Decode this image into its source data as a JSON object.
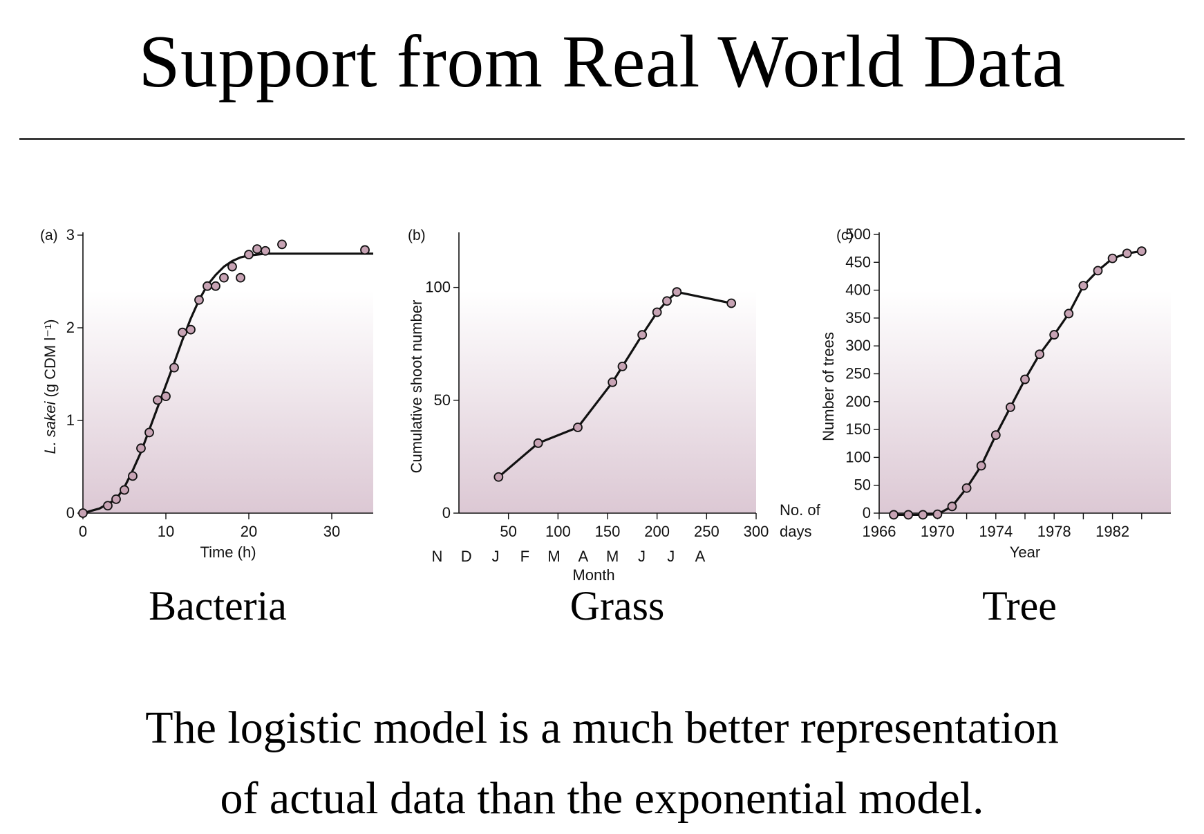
{
  "page": {
    "title": "Support from Real World Data",
    "summary_lines": [
      "The logistic model is a much better representation",
      "of actual data than the exponential model."
    ]
  },
  "colors": {
    "text": "#000000",
    "point_fill": "#c7a3b4",
    "line": "#111111",
    "gradient_bottom": "#dcc8d4",
    "gradient_top": "#ffffff"
  },
  "chart_data": [
    {
      "id": "a",
      "type": "line",
      "panel_label": "(a)",
      "caption": "Bacteria",
      "xlabel": "Time (h)",
      "ylabel_italic": "L. sakei",
      "ylabel_rest": " (g CDM l⁻¹)",
      "xlim": [
        0,
        35
      ],
      "ylim": [
        0,
        3
      ],
      "xticks": [
        0,
        10,
        20,
        30
      ],
      "yticks": [
        0,
        1,
        2,
        3
      ],
      "points": {
        "x": [
          0,
          3,
          4,
          5,
          6,
          7,
          8,
          9,
          10,
          11,
          12,
          13,
          14,
          15,
          16,
          17,
          18,
          19,
          20,
          21,
          22,
          24,
          34
        ],
        "y": [
          0,
          0.08,
          0.15,
          0.25,
          0.4,
          0.7,
          0.87,
          1.22,
          1.26,
          1.57,
          1.95,
          1.98,
          2.3,
          2.45,
          2.45,
          2.54,
          2.66,
          2.54,
          2.79,
          2.85,
          2.83,
          2.9,
          2.84
        ]
      },
      "curve": {
        "x": [
          0,
          2,
          4,
          5,
          6,
          7,
          8,
          9,
          10,
          11,
          12,
          13,
          14,
          15,
          16,
          17,
          18,
          19,
          20,
          21,
          22,
          23,
          25,
          28,
          35
        ],
        "y": [
          0,
          0.05,
          0.15,
          0.28,
          0.46,
          0.66,
          0.9,
          1.14,
          1.38,
          1.62,
          1.87,
          2.1,
          2.3,
          2.46,
          2.57,
          2.66,
          2.72,
          2.76,
          2.78,
          2.79,
          2.8,
          2.8,
          2.8,
          2.8,
          2.8
        ]
      }
    },
    {
      "id": "b",
      "type": "line",
      "panel_label": "(b)",
      "caption": "Grass",
      "xlabel": "Month",
      "ylabel": "Cumulative shoot number",
      "x_unit_label_1": "No. of",
      "x_unit_label_2": "days",
      "xlim": [
        0,
        300
      ],
      "ylim": [
        0,
        110
      ],
      "xticks": [
        50,
        100,
        150,
        200,
        250,
        300
      ],
      "yticks": [
        0,
        50,
        100
      ],
      "months": [
        "N",
        "D",
        "J",
        "F",
        "M",
        "A",
        "M",
        "J",
        "J",
        "A"
      ],
      "points": {
        "x": [
          40,
          80,
          120,
          155,
          165,
          185,
          200,
          210,
          220,
          275
        ],
        "y": [
          16,
          31,
          38,
          58,
          65,
          79,
          89,
          94,
          98,
          93
        ]
      }
    },
    {
      "id": "c",
      "type": "line",
      "panel_label": "(c)",
      "caption": "Tree",
      "xlabel": "Year",
      "ylabel": "Number of trees",
      "xlim": [
        1966,
        1986
      ],
      "ylim": [
        0,
        500
      ],
      "xticks": [
        1966,
        1970,
        1974,
        1978,
        1982
      ],
      "yticks": [
        0,
        50,
        100,
        150,
        200,
        250,
        300,
        350,
        400,
        450,
        500
      ],
      "points": {
        "x": [
          1967,
          1968,
          1969,
          1970,
          1971,
          1972,
          1973,
          1974,
          1975,
          1976,
          1977,
          1978,
          1979,
          1980,
          1981,
          1982,
          1983,
          1984
        ],
        "y": [
          -3,
          -3,
          -3,
          -2,
          12,
          45,
          85,
          140,
          190,
          240,
          285,
          320,
          358,
          408,
          435,
          457,
          466,
          470
        ]
      }
    }
  ]
}
